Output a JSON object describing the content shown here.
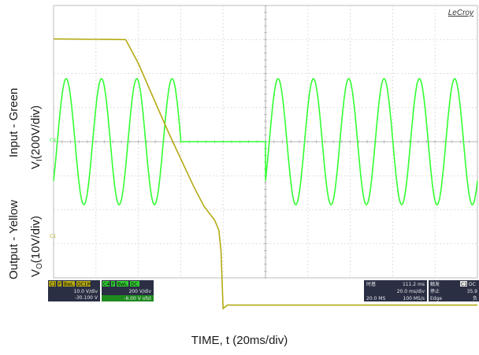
{
  "chart_data": {
    "type": "line",
    "brand": "LeCroy",
    "xlabel": "TIME, t (20ms/div)",
    "ylabels": {
      "input": "Input  - Green",
      "input_scale_prefix": "V",
      "input_scale_sub": "I",
      "input_scale_suffix": "(200V/div)",
      "output": "Output  - Yellow",
      "output_scale_prefix": "V",
      "output_scale_sub": "O",
      "output_scale_suffix": "(10V/div)"
    },
    "grid": true,
    "colors": {
      "input": "#33ff33",
      "output": "#b4aa14",
      "grid": "#c8c8c8",
      "background": "#ffffff",
      "panel": "#2a2f44"
    },
    "channel_markers": {
      "input": "C4",
      "output": "C1"
    },
    "series": [
      {
        "role": "input",
        "description_segments": [
          {
            "t_ms": [
              0,
              60
            ],
            "shape": "sine",
            "freq_hz": 60,
            "amplitude_div": 1.85,
            "phase_end_ms": 59.5
          },
          {
            "t_ms": [
              60,
              100
            ],
            "shape": "flat",
            "value_div": 0
          },
          {
            "t_ms": [
              100,
              200
            ],
            "shape": "sine",
            "freq_hz": 60,
            "amplitude_div": 1.85
          }
        ]
      },
      {
        "role": "output",
        "points_t_ms_div": [
          [
            0,
            3.02
          ],
          [
            34,
            3.0
          ],
          [
            40,
            2.3
          ],
          [
            47,
            1.3
          ],
          [
            54,
            0.3
          ],
          [
            60,
            -0.5
          ],
          [
            66,
            -1.3
          ],
          [
            71,
            -1.9
          ],
          [
            76,
            -2.3
          ],
          [
            78,
            -2.6
          ],
          [
            79,
            -3.2
          ],
          [
            80,
            -4.9
          ],
          [
            82,
            -4.8
          ],
          [
            200,
            -4.8
          ]
        ]
      }
    ]
  },
  "panels": {
    "ch1": {
      "tag": "C1",
      "flags": [
        "F",
        "BwL",
        "DC1M"
      ],
      "scale": "10.0 V/div",
      "offset": "-30.100 V"
    },
    "ch4": {
      "tag": "C4",
      "flags": [
        "F",
        "BwL",
        "DC"
      ],
      "scale": "200 V/div",
      "offset": "-6.00 V ofst"
    },
    "timebase": {
      "title": "时基",
      "value": "111.2 ms",
      "rate": "20.0 ms/div",
      "samples": "20.0 MS",
      "sample_rate": "100 MS/s"
    },
    "trigger": {
      "title": "触发",
      "tag": "C1",
      "flags": "DC",
      "state": "停止",
      "level": "35.9",
      "type": "Edge",
      "slope": "负"
    }
  }
}
